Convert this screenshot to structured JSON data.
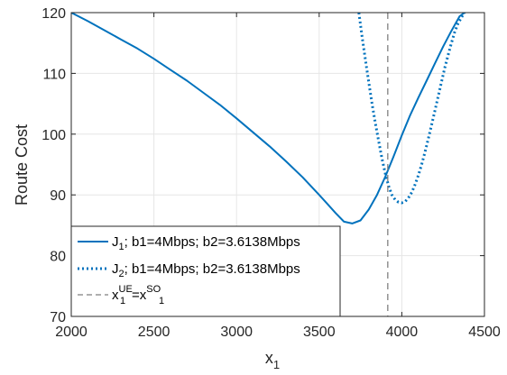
{
  "chart_data": {
    "type": "line",
    "title": "",
    "xlabel": "x",
    "xlabel_sub": "1",
    "ylabel": "Route Cost",
    "xlim": [
      2000,
      4500
    ],
    "ylim": [
      70,
      120
    ],
    "xticks": [
      2000,
      2500,
      3000,
      3500,
      4000,
      4500
    ],
    "yticks": [
      70,
      80,
      90,
      100,
      110,
      120
    ],
    "xtick_labels": [
      "2000",
      "2500",
      "3000",
      "3500",
      "4000",
      "4500"
    ],
    "ytick_labels": [
      "70",
      "80",
      "90",
      "100",
      "110",
      "120"
    ],
    "grid": true,
    "legend_position": "bottom-left",
    "colors": {
      "series": "#0072BD",
      "vline": "#7f7f7f",
      "grid": "#e6e6e6",
      "axis": "#262626"
    },
    "series": [
      {
        "style": "solid",
        "x": [
          2000,
          2100,
          2200,
          2300,
          2400,
          2500,
          2600,
          2700,
          2800,
          2900,
          3000,
          3100,
          3200,
          3300,
          3400,
          3500,
          3550,
          3600,
          3650,
          3700,
          3750,
          3800,
          3850,
          3900,
          3950,
          4000,
          4050,
          4100,
          4150,
          4200,
          4250,
          4300,
          4350,
          4380
        ],
        "y": [
          120,
          118.6,
          117.1,
          115.6,
          114.1,
          112.4,
          110.6,
          108.8,
          106.8,
          104.8,
          102.6,
          100.3,
          98.0,
          95.5,
          92.9,
          90.0,
          88.5,
          87.0,
          85.6,
          85.3,
          85.8,
          87.6,
          90.0,
          93.0,
          96.3,
          99.8,
          103.1,
          106.0,
          108.8,
          111.6,
          114.4,
          117.0,
          119.4,
          120
        ]
      },
      {
        "style": "dotted",
        "x": [
          3740,
          3760,
          3780,
          3800,
          3820,
          3840,
          3860,
          3880,
          3900,
          3920,
          3940,
          3960,
          3980,
          4000,
          4020,
          4040,
          4060,
          4080,
          4100,
          4120,
          4140,
          4160,
          4180,
          4200,
          4220,
          4240,
          4260,
          4280,
          4300,
          4320,
          4340,
          4360,
          4380
        ],
        "y": [
          120,
          116.0,
          112.2,
          108.5,
          105.0,
          101.8,
          98.8,
          96.0,
          93.5,
          91.5,
          90.0,
          89.2,
          88.8,
          88.7,
          88.9,
          89.5,
          90.4,
          91.7,
          93.2,
          95.0,
          97.0,
          99.2,
          101.5,
          103.8,
          106.2,
          108.6,
          110.9,
          113.0,
          115.0,
          116.8,
          118.2,
          119.2,
          120
        ]
      }
    ],
    "vline": {
      "x": 3915,
      "style": "dashed"
    },
    "legend": [
      {
        "base": "J",
        "sub": "1",
        "text": "; b1=4Mbps; b2=3.6138Mbps",
        "style": "solid"
      },
      {
        "base": "J",
        "sub": "2",
        "text": "; b1=4Mbps; b2=3.6138Mbps",
        "style": "dotted"
      },
      {
        "base1": "x",
        "sup1": "UE",
        "sub1": "1",
        "eq": "=x",
        "sup2": "SO",
        "sub2": "1",
        "style": "dashed"
      }
    ]
  }
}
